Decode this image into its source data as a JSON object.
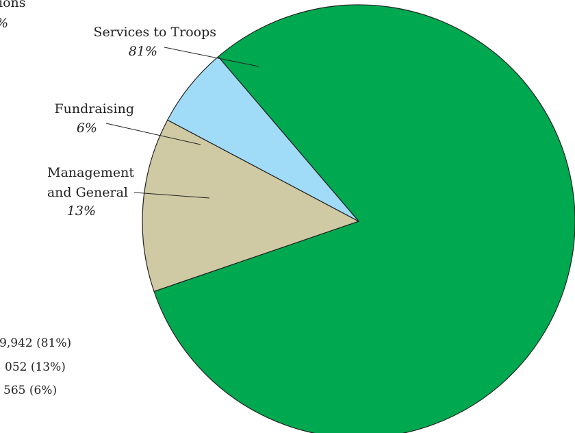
{
  "chart_data": {
    "type": "pie",
    "title": "",
    "slices": [
      {
        "label": "Services to Troops",
        "label_lines": [
          "Services to Troops"
        ],
        "pct_label": "81%",
        "value": 81,
        "color": "#00A84F"
      },
      {
        "label": "Management and General",
        "label_lines": [
          "Management",
          "and General"
        ],
        "pct_label": "13%",
        "value": 13,
        "color": "#CFC9A4"
      },
      {
        "label": "Fundraising",
        "label_lines": [
          "Fundraising"
        ],
        "pct_label": "6%",
        "value": 6,
        "color": "#A0DBF7"
      }
    ],
    "cut_off_labels": [
      {
        "line1": "ions",
        "line2": "%"
      }
    ],
    "cut_off_figures": [
      "9,942 (81%)",
      "052 (13%)",
      "565 (6%)"
    ]
  }
}
